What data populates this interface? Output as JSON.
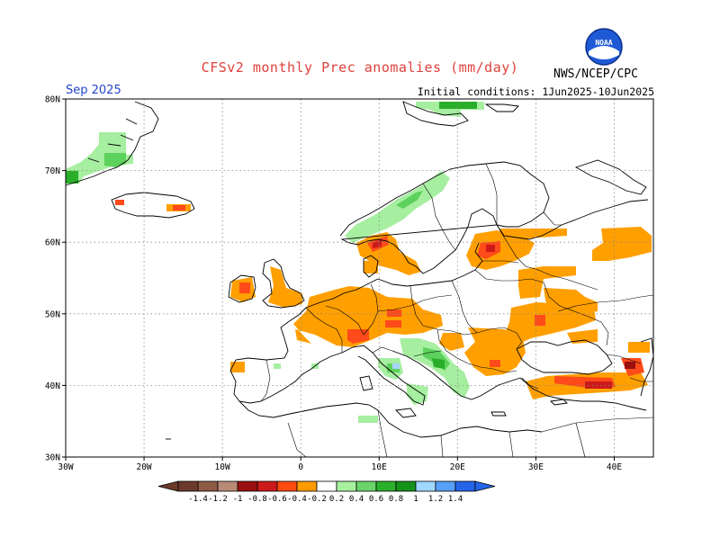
{
  "header": {
    "title": "CFSv2 monthly Prec anomalies (mm/day)",
    "valid_month": "Sep 2025",
    "initial_conditions": "Initial conditions: 1Jun2025-10Jun2025",
    "agency": "NWS/NCEP/CPC",
    "logo_text": "NOAA"
  },
  "map": {
    "lon_range": [
      -30,
      45
    ],
    "lat_range": [
      30,
      80
    ],
    "lat_labels": [
      "80N",
      "70N",
      "60N",
      "50N",
      "40N",
      "30N"
    ],
    "lon_labels": [
      "30W",
      "20W",
      "10W",
      "0",
      "10E",
      "20E",
      "30E",
      "40E"
    ],
    "grid": "dotted"
  },
  "colorbar": {
    "labels": [
      "-1.4",
      "-1.2",
      "-1",
      "-0.8",
      "-0.6",
      "-0.4",
      "-0.2",
      "0.2",
      "0.4",
      "0.6",
      "0.8",
      "1",
      "1.2",
      "1.4"
    ],
    "colors": [
      "#6b3a2a",
      "#8c5a45",
      "#b88a77",
      "#9a1010",
      "#cc1a1a",
      "#ff4a10",
      "#ff9a00",
      "#ffffff",
      "#a8f0a0",
      "#6ad36a",
      "#2cb02c",
      "#15921a",
      "#a0d8ff",
      "#58a0f8",
      "#2464e8"
    ]
  },
  "colors": {
    "dry_light": "#ff9f00",
    "dry_mid": "#ff4a1a",
    "dry_strong": "#cc1a1a",
    "wet_light": "#a6eea0",
    "wet_mid": "#5cd15c",
    "wet_strong": "#2aae2a",
    "wet_blue": "#a6d4ff"
  }
}
